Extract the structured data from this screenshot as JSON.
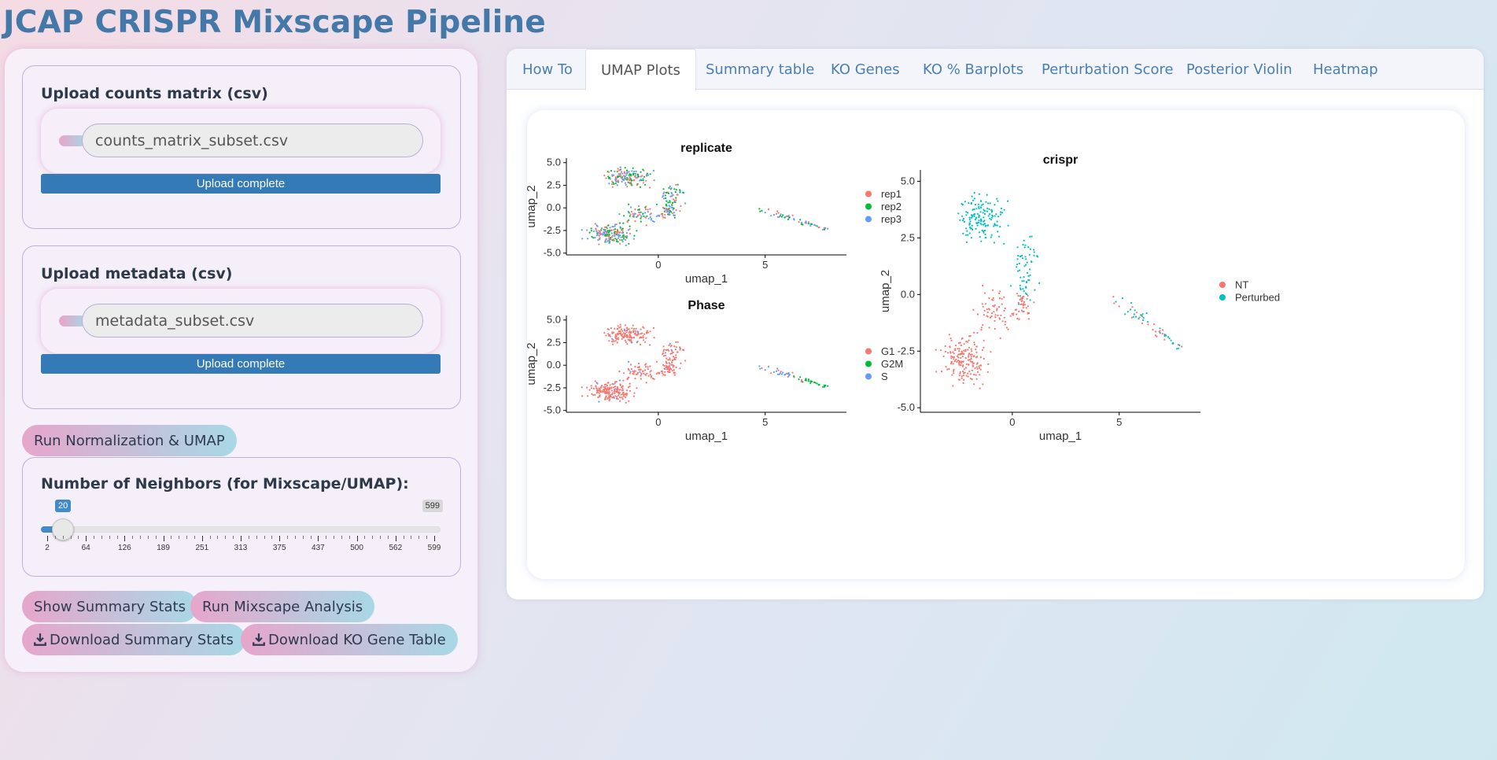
{
  "app": {
    "title": "JCAP CRISPR Mixscape Pipeline"
  },
  "sidebar": {
    "counts_upload": {
      "label": "Upload counts matrix (csv)",
      "file_name": "counts_matrix_subset.csv",
      "progress_text": "Upload complete",
      "progress": 1.0
    },
    "metadata_upload": {
      "label": "Upload metadata (csv)",
      "file_name": "metadata_subset.csv",
      "progress_text": "Upload complete",
      "progress": 1.0
    },
    "run_norm_button": "Run Normalization & UMAP",
    "neighbors": {
      "label": "Number of Neighbors (for Mixscape/UMAP):",
      "min": 2,
      "max": 599,
      "value": 20,
      "value_text": "20",
      "max_text": "599",
      "ticks": [
        "2",
        "64",
        "126",
        "189",
        "251",
        "313",
        "375",
        "437",
        "500",
        "562",
        "599"
      ]
    },
    "show_summary_button": "Show Summary Stats",
    "run_mixscape_button": "Run Mixscape Analysis",
    "download_summary_button": "Download Summary Stats",
    "download_ko_button": "Download KO Gene Table",
    "download_icon": "download-icon"
  },
  "tabs": [
    {
      "label": "How To",
      "active": false
    },
    {
      "label": "UMAP Plots",
      "active": true
    },
    {
      "label": "Summary table",
      "active": false
    },
    {
      "label": "KO Genes",
      "active": false
    },
    {
      "label": "KO % Barplots",
      "active": false
    },
    {
      "label": "Perturbation Score",
      "active": false
    },
    {
      "label": "Posterior Violin",
      "active": false
    },
    {
      "label": "Heatmap",
      "active": false
    }
  ],
  "colors": {
    "accent": "#337ab7",
    "title": "#4478a8",
    "red": "#F8766D",
    "green": "#00BA38",
    "blue": "#619CFF",
    "teal": "#00BFC4"
  },
  "chart_data": [
    {
      "type": "scatter",
      "title": "replicate",
      "xlabel": "umap_1",
      "ylabel": "umap_2",
      "xticks": [
        "0",
        "5"
      ],
      "yticks": [
        "5.0",
        "2.5",
        "0.0",
        "-2.5",
        "-5.0"
      ],
      "xlim": [
        -4.3,
        8.8
      ],
      "ylim": [
        -5.2,
        5.5
      ],
      "legend": [
        {
          "name": "rep1",
          "color": "#F8766D"
        },
        {
          "name": "rep2",
          "color": "#00BA38"
        },
        {
          "name": "rep3",
          "color": "#619CFF"
        }
      ],
      "legend_position": "right"
    },
    {
      "type": "scatter",
      "title": "Phase",
      "xlabel": "umap_1",
      "ylabel": "umap_2",
      "xticks": [
        "0",
        "5"
      ],
      "yticks": [
        "5.0",
        "2.5",
        "0.0",
        "-2.5",
        "-5.0"
      ],
      "xlim": [
        -4.3,
        8.8
      ],
      "ylim": [
        -5.2,
        5.5
      ],
      "legend": [
        {
          "name": "G1",
          "color": "#F8766D"
        },
        {
          "name": "G2M",
          "color": "#00BA38"
        },
        {
          "name": "S",
          "color": "#619CFF"
        }
      ],
      "legend_position": "right"
    },
    {
      "type": "scatter",
      "title": "crispr",
      "xlabel": "umap_1",
      "ylabel": "umap_2",
      "xticks": [
        "0",
        "5"
      ],
      "yticks": [
        "5.0",
        "2.5",
        "0.0",
        "-2.5",
        "-5.0"
      ],
      "xlim": [
        -4.3,
        8.8
      ],
      "ylim": [
        -5.2,
        5.5
      ],
      "legend": [
        {
          "name": "NT",
          "color": "#F8766D"
        },
        {
          "name": "Perturbed",
          "color": "#00BFC4"
        }
      ],
      "legend_position": "right"
    }
  ]
}
